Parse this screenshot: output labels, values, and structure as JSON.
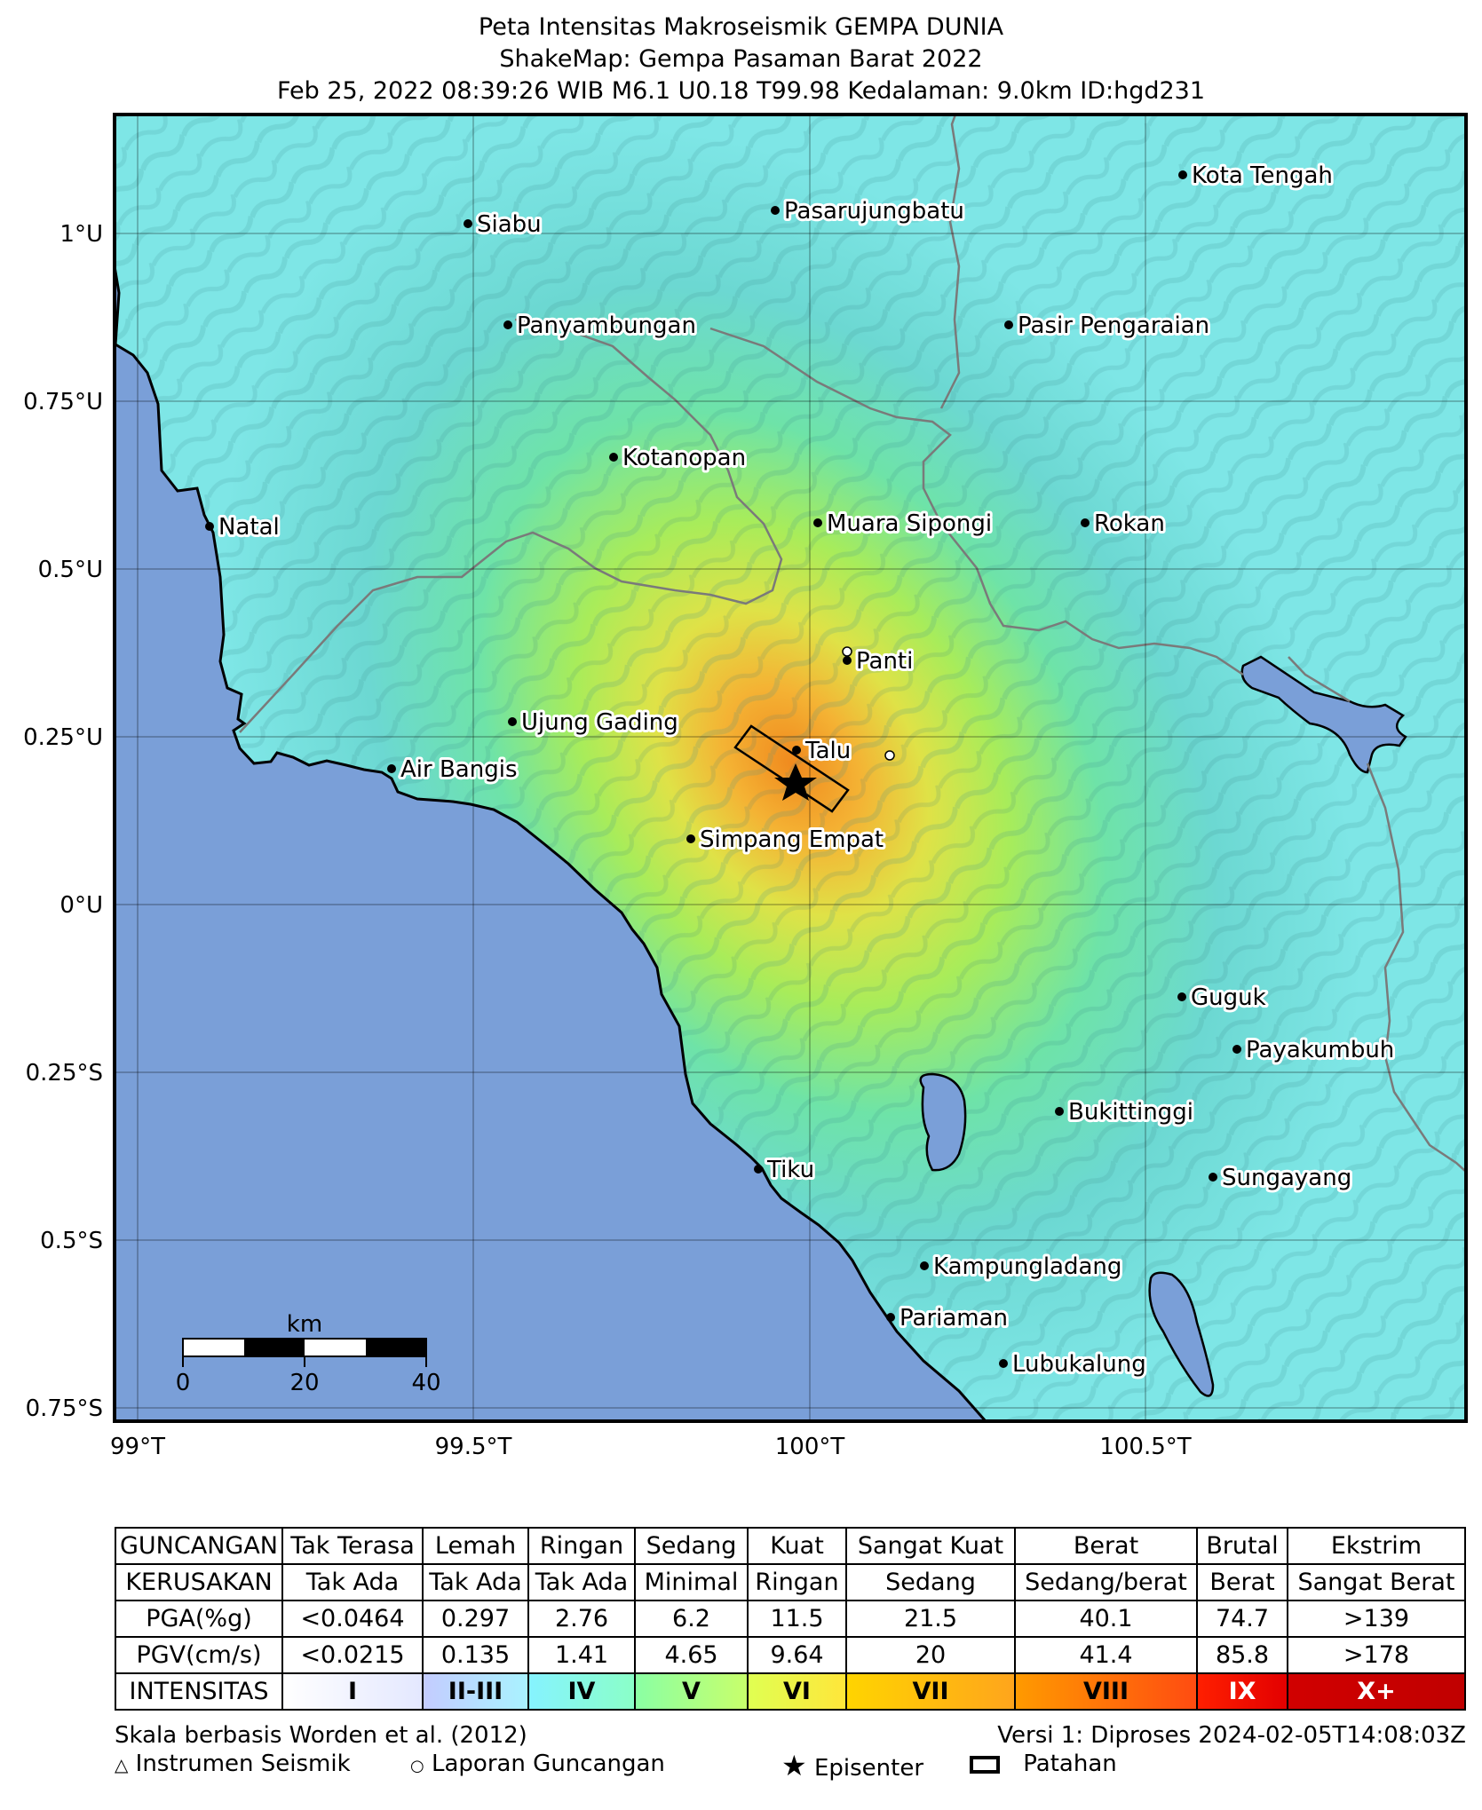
{
  "title": {
    "line1": "Peta Intensitas Makroseismik GEMPA DUNIA",
    "line2": "ShakeMap: Gempa Pasaman Barat 2022",
    "line3": "Feb 25, 2022 08:39:26 WIB M6.1 U0.18 T99.98 Kedalaman: 9.0km ID:hgd231"
  },
  "map": {
    "lat_ticks": [
      "1°U",
      "0.75°U",
      "0.5°U",
      "0.25°U",
      "0°U",
      "0.25°S",
      "0.5°S",
      "0.75°S"
    ],
    "lon_ticks": [
      "99°T",
      "99.5°T",
      "100°T",
      "100.5°T"
    ],
    "epicenter": {
      "lat": 0.18,
      "lon": 99.98
    },
    "cities": [
      {
        "name": "Kota Tengah"
      },
      {
        "name": "Siabu"
      },
      {
        "name": "Pasarujungbatu"
      },
      {
        "name": "Panyambungan"
      },
      {
        "name": "Pasir Pengaraian"
      },
      {
        "name": "Kotanopan"
      },
      {
        "name": "Natal"
      },
      {
        "name": "Muara Sipongi"
      },
      {
        "name": "Rokan"
      },
      {
        "name": "Panti"
      },
      {
        "name": "Ujung Gading"
      },
      {
        "name": "Talu"
      },
      {
        "name": "Air Bangis"
      },
      {
        "name": "Simpang Empat"
      },
      {
        "name": "Guguk"
      },
      {
        "name": "Payakumbuh"
      },
      {
        "name": "Bukittinggi"
      },
      {
        "name": "Tiku"
      },
      {
        "name": "Sungayang"
      },
      {
        "name": "Kampungladang"
      },
      {
        "name": "Pariaman"
      },
      {
        "name": "Lubukalung"
      }
    ],
    "scale_bar": {
      "unit": "km",
      "ticks": [
        "0",
        "20",
        "40"
      ]
    },
    "colors": {
      "ocean": "#7a9fd8",
      "land_base": "#7de3e3",
      "intensity_peak": "#f39a2a"
    }
  },
  "legend": {
    "rows": [
      {
        "label": "GUNCANGAN",
        "cells": [
          "Tak Terasa",
          "Lemah",
          "Ringan",
          "Sedang",
          "Kuat",
          "Sangat Kuat",
          "Berat",
          "Brutal",
          "Ekstrim"
        ]
      },
      {
        "label": "KERUSAKAN",
        "cells": [
          "Tak Ada",
          "Tak Ada",
          "Tak Ada",
          "Minimal",
          "Ringan",
          "Sedang",
          "Sedang/berat",
          "Berat",
          "Sangat Berat"
        ]
      },
      {
        "label": "PGA(%g)",
        "cells": [
          "<0.0464",
          "0.297",
          "2.76",
          "6.2",
          "11.5",
          "21.5",
          "40.1",
          "74.7",
          ">139"
        ]
      },
      {
        "label": "PGV(cm/s)",
        "cells": [
          "<0.0215",
          "0.135",
          "1.41",
          "4.65",
          "9.64",
          "20",
          "41.4",
          "85.8",
          ">178"
        ]
      }
    ],
    "intensity": {
      "label": "INTENSITAS",
      "cells": [
        {
          "text": "I",
          "color": "#ffffff",
          "color2": "#e4e8ff"
        },
        {
          "text": "II-III",
          "color": "#c4ccff",
          "color2": "#a9f2ff"
        },
        {
          "text": "IV",
          "color": "#86f3ff",
          "color2": "#8affc8"
        },
        {
          "text": "V",
          "color": "#8affa4",
          "color2": "#c8ff6b"
        },
        {
          "text": "VI",
          "color": "#e0ff52",
          "color2": "#ffe63a"
        },
        {
          "text": "VII",
          "color": "#ffd400",
          "color2": "#ffa51c"
        },
        {
          "text": "VIII",
          "color": "#ff9a00",
          "color2": "#ff4c11"
        },
        {
          "text": "IX",
          "color": "#ff1f00",
          "color2": "#e30000"
        },
        {
          "text": "X+",
          "color": "#d10000",
          "color2": "#c00000"
        }
      ]
    }
  },
  "footer": {
    "scale_note": "Skala berbasis Worden et al. (2012)",
    "version": "Versi 1: Diproses 2024-02-05T14:08:03Z",
    "legend_instrument": "Instrumen Seismik",
    "legend_report": "Laporan Guncangan",
    "legend_epicenter": "Episenter",
    "legend_fault": "Patahan"
  }
}
